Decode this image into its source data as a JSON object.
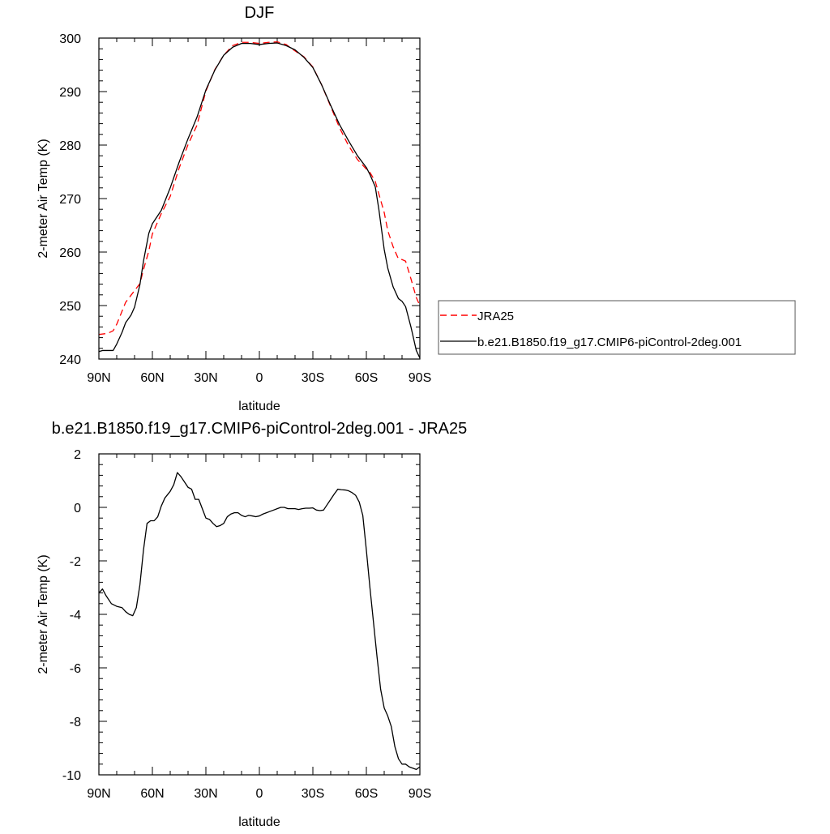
{
  "chart_data": [
    {
      "type": "line",
      "title": "DJF",
      "xlabel": "latitude",
      "ylabel": "2-meter Air Temp (K)",
      "xlim": [
        -90,
        90
      ],
      "ylim": [
        240,
        300
      ],
      "x_ticks": [
        {
          "value": -90,
          "label": "90N"
        },
        {
          "value": -60,
          "label": "60N"
        },
        {
          "value": -30,
          "label": "30N"
        },
        {
          "value": 0,
          "label": "0"
        },
        {
          "value": 30,
          "label": "30S"
        },
        {
          "value": 60,
          "label": "60S"
        },
        {
          "value": 90,
          "label": "90S"
        }
      ],
      "y_ticks": [
        240,
        250,
        260,
        270,
        280,
        290,
        300
      ],
      "legend_position": "right",
      "series": [
        {
          "name": "JRA25",
          "color": "#ff0000",
          "dash": "dashed",
          "x": [
            -90,
            -85,
            -82,
            -80,
            -75,
            -70,
            -67,
            -65,
            -62,
            -60,
            -55,
            -50,
            -45,
            -40,
            -35,
            -30,
            -25,
            -20,
            -15,
            -10,
            -5,
            0,
            5,
            10,
            15,
            20,
            25,
            30,
            35,
            40,
            45,
            50,
            55,
            60,
            62,
            65,
            70,
            72,
            75,
            78,
            80,
            82,
            85,
            88,
            90
          ],
          "y": [
            244.6,
            244.8,
            245.3,
            246.5,
            250.6,
            252.8,
            254.1,
            256.7,
            260.2,
            263.4,
            267.2,
            270.4,
            275.7,
            280.1,
            283.7,
            290.1,
            294.1,
            296.8,
            298.6,
            299.2,
            299.2,
            299.0,
            299.2,
            299.3,
            298.8,
            297.6,
            296.5,
            294.6,
            291.2,
            287.2,
            283.2,
            279.9,
            277.3,
            275.5,
            274.9,
            273.2,
            267.4,
            264.0,
            261.0,
            258.7,
            258.6,
            258.3,
            255.0,
            251.5,
            250.0
          ]
        },
        {
          "name": "b.e21.B1850.f19_g17.CMIP6-piControl-2deg.001",
          "color": "#000000",
          "dash": "solid",
          "x": [
            -90,
            -88,
            -85,
            -82,
            -80,
            -77,
            -75,
            -72,
            -70,
            -67,
            -65,
            -62,
            -60,
            -55,
            -50,
            -45,
            -40,
            -35,
            -30,
            -25,
            -20,
            -15,
            -10,
            -5,
            0,
            5,
            10,
            15,
            20,
            25,
            30,
            35,
            40,
            45,
            50,
            55,
            60,
            62,
            65,
            67,
            70,
            72,
            75,
            78,
            80,
            82,
            85,
            88,
            90
          ],
          "y": [
            241.4,
            241.6,
            241.6,
            241.6,
            242.8,
            245.0,
            246.8,
            248.2,
            249.7,
            253.9,
            258.3,
            263.5,
            265.3,
            267.8,
            272.0,
            276.8,
            281.2,
            285.2,
            290.3,
            294.0,
            296.8,
            298.3,
            299.0,
            299.0,
            298.8,
            299.0,
            299.1,
            298.6,
            297.8,
            296.4,
            294.5,
            291.2,
            287.4,
            283.8,
            280.8,
            278.0,
            275.8,
            274.5,
            272.2,
            268.0,
            260.5,
            257.0,
            253.5,
            251.3,
            250.8,
            249.8,
            246.0,
            241.6,
            240.2
          ]
        }
      ]
    },
    {
      "type": "line",
      "title": "b.e21.B1850.f19_g17.CMIP6-piControl-2deg.001 - JRA25",
      "xlabel": "latitude",
      "ylabel": "2-meter Air Temp (K)",
      "xlim": [
        -90,
        90
      ],
      "ylim": [
        -10,
        2
      ],
      "x_ticks": [
        {
          "value": -90,
          "label": "90N"
        },
        {
          "value": -60,
          "label": "60N"
        },
        {
          "value": -30,
          "label": "30N"
        },
        {
          "value": 0,
          "label": "0"
        },
        {
          "value": 30,
          "label": "30S"
        },
        {
          "value": 60,
          "label": "60S"
        },
        {
          "value": 90,
          "label": "90S"
        }
      ],
      "y_ticks": [
        -10,
        -8,
        -6,
        -4,
        -2,
        0,
        2
      ],
      "series": [
        {
          "color": "#000000",
          "dash": "solid",
          "x": [
            -90,
            -88,
            -86,
            -83,
            -80,
            -77,
            -75,
            -73,
            -71,
            -69,
            -67,
            -65,
            -63,
            -61,
            -59,
            -57,
            -55,
            -53,
            -50,
            -48,
            -46,
            -44,
            -42,
            -40,
            -38,
            -36,
            -34,
            -32,
            -30,
            -28,
            -26,
            -24,
            -22,
            -20,
            -18,
            -16,
            -14,
            -12,
            -10,
            -8,
            -6,
            -4,
            -2,
            0,
            2,
            4,
            6,
            8,
            10,
            12,
            14,
            16,
            18,
            20,
            22,
            24,
            26,
            28,
            30,
            32,
            34,
            36,
            38,
            40,
            42,
            44,
            46,
            48,
            50,
            52,
            54,
            56,
            58,
            60,
            62,
            64,
            66,
            68,
            70,
            72,
            74,
            76,
            78,
            80,
            82,
            84,
            86,
            88,
            90
          ],
          "y": [
            -3.2,
            -3.05,
            -3.3,
            -3.6,
            -3.7,
            -3.75,
            -3.9,
            -4.0,
            -4.05,
            -3.75,
            -2.9,
            -1.6,
            -0.6,
            -0.5,
            -0.5,
            -0.35,
            0.05,
            0.35,
            0.6,
            0.85,
            1.3,
            1.15,
            0.95,
            0.75,
            0.68,
            0.3,
            0.3,
            -0.05,
            -0.4,
            -0.45,
            -0.6,
            -0.72,
            -0.68,
            -0.6,
            -0.35,
            -0.25,
            -0.2,
            -0.2,
            -0.3,
            -0.35,
            -0.3,
            -0.32,
            -0.35,
            -0.32,
            -0.25,
            -0.2,
            -0.15,
            -0.1,
            -0.05,
            0.0,
            0.0,
            -0.05,
            -0.05,
            -0.05,
            -0.08,
            -0.05,
            -0.03,
            -0.03,
            -0.02,
            -0.1,
            -0.12,
            -0.1,
            0.1,
            0.3,
            0.5,
            0.68,
            0.66,
            0.65,
            0.62,
            0.55,
            0.45,
            0.2,
            -0.3,
            -1.6,
            -3.0,
            -4.3,
            -5.6,
            -6.8,
            -7.5,
            -7.8,
            -8.2,
            -8.95,
            -9.4,
            -9.6,
            -9.6,
            -9.7,
            -9.75,
            -9.8,
            -9.7
          ]
        }
      ]
    }
  ]
}
